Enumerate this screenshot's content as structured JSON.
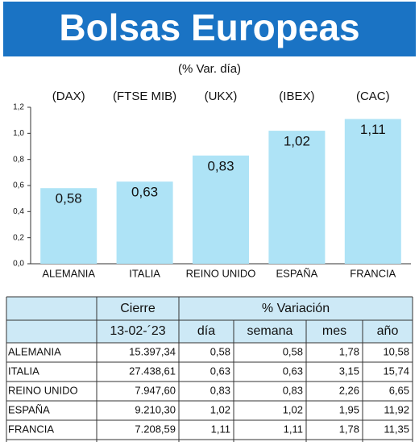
{
  "title": "Bolsas Europeas",
  "chart_data": {
    "type": "bar",
    "subtitle": "(% Var. día)",
    "categories": [
      "ALEMANIA",
      "ITALIA",
      "REINO UNIDO",
      "ESPAÑA",
      "FRANCIA"
    ],
    "index_labels": [
      "(DAX)",
      "(FTSE MIB)",
      "(UKX)",
      "(IBEX)",
      "(CAC)"
    ],
    "values": [
      0.58,
      0.63,
      0.83,
      1.02,
      1.11
    ],
    "value_labels": [
      "0,58",
      "0,63",
      "0,83",
      "1,02",
      "1,11"
    ],
    "color": "#aee3f6",
    "ylim": [
      0,
      1.2
    ],
    "yticks": [
      {
        "value": 0,
        "label": "0,0"
      },
      {
        "value": 0.2,
        "label": "0,2"
      },
      {
        "value": 0.4,
        "label": "0,4"
      },
      {
        "value": 0.6,
        "label": "0,6"
      },
      {
        "value": 0.8,
        "label": "0,8"
      },
      {
        "value": 1.0,
        "label": "1,0"
      },
      {
        "value": 1.2,
        "label": "1,2"
      }
    ]
  },
  "table": {
    "header": [
      "Cierre",
      "% Variación"
    ],
    "subheader": [
      "13-02-´23",
      "día",
      "semana",
      "mes",
      "año"
    ],
    "rows": [
      [
        "ALEMANIA",
        "15.397,34",
        "0,58",
        "0,58",
        "1,78",
        "10,58"
      ],
      [
        "ITALIA",
        "27.438,61",
        "0,63",
        "0,63",
        "3,15",
        "15,74"
      ],
      [
        "REINO UNIDO",
        "7.947,60",
        "0,83",
        "0,83",
        "2,26",
        "6,65"
      ],
      [
        "ESPAÑA",
        "9.210,30",
        "1,02",
        "1,02",
        "1,95",
        "11,92"
      ],
      [
        "FRANCIA",
        "7.208,59",
        "1,11",
        "1,11",
        "1,78",
        "11,35"
      ]
    ]
  }
}
